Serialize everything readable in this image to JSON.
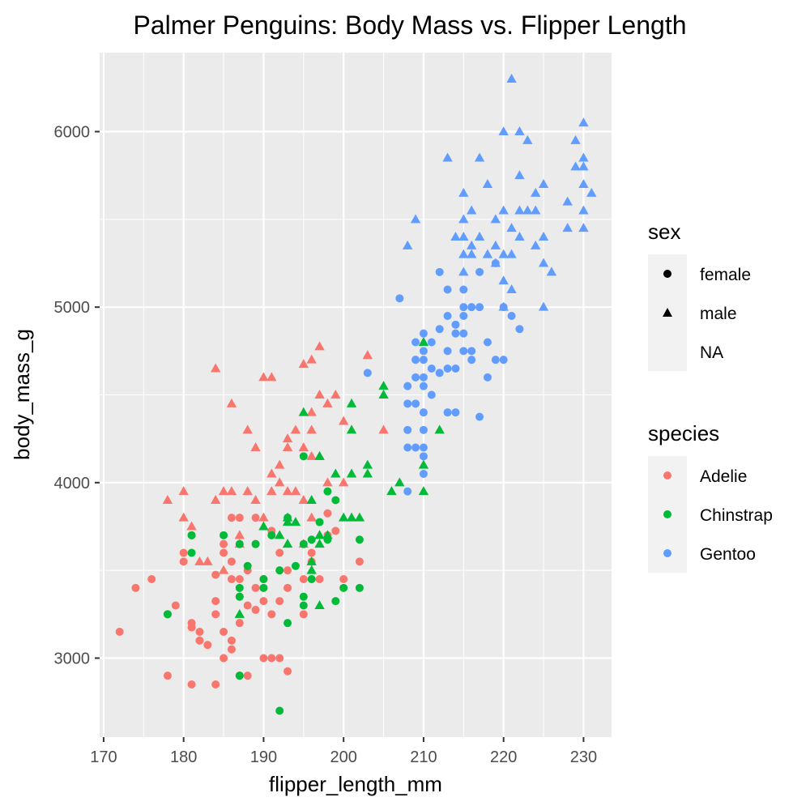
{
  "chart_data": {
    "type": "scatter",
    "title": "Palmer Penguins: Body Mass vs. Flipper Length",
    "xlabel": "flipper_length_mm",
    "ylabel": "body_mass_g",
    "xlim": [
      169.5,
      233.5
    ],
    "ylim": [
      2550,
      6450
    ],
    "x_ticks": [
      170,
      180,
      190,
      200,
      210,
      220,
      230
    ],
    "y_ticks": [
      3000,
      4000,
      5000,
      6000
    ],
    "grid": true,
    "legends": [
      {
        "title": "sex",
        "entries": [
          {
            "label": "female",
            "shape": "circle"
          },
          {
            "label": "male",
            "shape": "triangle"
          },
          {
            "label": "NA",
            "shape": "none"
          }
        ]
      },
      {
        "title": "species",
        "entries": [
          {
            "label": "Adelie",
            "color": "#F8766D"
          },
          {
            "label": "Chinstrap",
            "color": "#00BA38"
          },
          {
            "label": "Gentoo",
            "color": "#619CFF"
          }
        ]
      }
    ],
    "colors": {
      "Adelie": "#F8766D",
      "Chinstrap": "#00BA38",
      "Gentoo": "#619CFF",
      "panel": "#EBEBEB",
      "grid": "#FFFFFF",
      "legend_key": "#F2F2F2"
    },
    "series": [
      {
        "species": "Adelie",
        "sex": "female",
        "points": [
          [
            172,
            3150
          ],
          [
            174,
            3400
          ],
          [
            176,
            3450
          ],
          [
            178,
            2900
          ],
          [
            178,
            3250
          ],
          [
            179,
            3300
          ],
          [
            180,
            3550
          ],
          [
            180,
            3600
          ],
          [
            181,
            2850
          ],
          [
            181,
            3175
          ],
          [
            181,
            3200
          ],
          [
            181,
            3700
          ],
          [
            182,
            3150
          ],
          [
            182,
            3100
          ],
          [
            183,
            3075
          ],
          [
            184,
            2850
          ],
          [
            184,
            3475
          ],
          [
            184,
            3325
          ],
          [
            184,
            3250
          ],
          [
            185,
            3000
          ],
          [
            185,
            3150
          ],
          [
            185,
            3600
          ],
          [
            185,
            3650
          ],
          [
            186,
            3100
          ],
          [
            186,
            3800
          ],
          [
            186,
            3550
          ],
          [
            186,
            3450
          ],
          [
            186,
            3050
          ],
          [
            187,
            3200
          ],
          [
            187,
            3450
          ],
          [
            187,
            3350
          ],
          [
            187,
            3800
          ],
          [
            187,
            2900
          ],
          [
            188,
            3300
          ],
          [
            188,
            3500
          ],
          [
            188,
            2900
          ],
          [
            189,
            3400
          ],
          [
            189,
            3650
          ],
          [
            189,
            3800
          ],
          [
            189,
            3275
          ],
          [
            190,
            3000
          ],
          [
            190,
            3325
          ],
          [
            190,
            3450
          ],
          [
            191,
            3000
          ],
          [
            191,
            3250
          ],
          [
            191,
            3725
          ],
          [
            192,
            3325
          ],
          [
            192,
            3600
          ],
          [
            192,
            3000
          ],
          [
            193,
            2925
          ],
          [
            193,
            3500
          ],
          [
            193,
            3400
          ],
          [
            195,
            3250
          ],
          [
            195,
            3450
          ],
          [
            196,
            3550
          ],
          [
            196,
            3600
          ],
          [
            197,
            3450
          ],
          [
            198,
            3825
          ],
          [
            198,
            3700
          ],
          [
            199,
            3725
          ],
          [
            200,
            3450
          ],
          [
            202,
            3550
          ]
        ]
      },
      {
        "species": "Adelie",
        "sex": "male",
        "points": [
          [
            178,
            3900
          ],
          [
            180,
            3950
          ],
          [
            180,
            3800
          ],
          [
            181,
            3750
          ],
          [
            182,
            3550
          ],
          [
            183,
            3550
          ],
          [
            184,
            4650
          ],
          [
            184,
            3900
          ],
          [
            185,
            3950
          ],
          [
            185,
            3500
          ],
          [
            186,
            4450
          ],
          [
            186,
            3950
          ],
          [
            187,
            3700
          ],
          [
            187,
            3650
          ],
          [
            188,
            4300
          ],
          [
            188,
            3950
          ],
          [
            189,
            3900
          ],
          [
            189,
            4200
          ],
          [
            190,
            4600
          ],
          [
            190,
            3800
          ],
          [
            191,
            4600
          ],
          [
            191,
            3950
          ],
          [
            191,
            4050
          ],
          [
            192,
            4100
          ],
          [
            192,
            4000
          ],
          [
            193,
            4250
          ],
          [
            193,
            4200
          ],
          [
            193,
            3950
          ],
          [
            194,
            4300
          ],
          [
            194,
            3950
          ],
          [
            195,
            4675
          ],
          [
            195,
            4200
          ],
          [
            195,
            3650
          ],
          [
            195,
            3900
          ],
          [
            196,
            4700
          ],
          [
            196,
            4400
          ],
          [
            196,
            4300
          ],
          [
            196,
            4150
          ],
          [
            196,
            3800
          ],
          [
            197,
            4775
          ],
          [
            197,
            4500
          ],
          [
            197,
            4150
          ],
          [
            197,
            3700
          ],
          [
            198,
            4450
          ],
          [
            198,
            4000
          ],
          [
            199,
            4500
          ],
          [
            200,
            4000
          ],
          [
            200,
            4350
          ],
          [
            203,
            4725
          ],
          [
            205,
            4300
          ]
        ]
      },
      {
        "species": "Chinstrap",
        "sex": "female",
        "points": [
          [
            178,
            3250
          ],
          [
            181,
            3700
          ],
          [
            181,
            3600
          ],
          [
            185,
            3700
          ],
          [
            187,
            3650
          ],
          [
            187,
            3350
          ],
          [
            187,
            3400
          ],
          [
            187,
            2900
          ],
          [
            188,
            3525
          ],
          [
            189,
            3650
          ],
          [
            190,
            3450
          ],
          [
            190,
            3400
          ],
          [
            191,
            3700
          ],
          [
            192,
            3500
          ],
          [
            192,
            2700
          ],
          [
            193,
            3800
          ],
          [
            193,
            3200
          ],
          [
            194,
            3525
          ],
          [
            195,
            3350
          ],
          [
            195,
            3650
          ],
          [
            195,
            4150
          ],
          [
            195,
            3300
          ],
          [
            196,
            3675
          ],
          [
            196,
            3450
          ],
          [
            197,
            3775
          ],
          [
            198,
            3950
          ],
          [
            199,
            3900
          ],
          [
            199,
            3325
          ],
          [
            200,
            3400
          ],
          [
            202,
            3400
          ],
          [
            202,
            3675
          ],
          [
            198,
            3675
          ]
        ]
      },
      {
        "species": "Chinstrap",
        "sex": "male",
        "points": [
          [
            187,
            3250
          ],
          [
            190,
            3750
          ],
          [
            192,
            3700
          ],
          [
            193,
            3800
          ],
          [
            193,
            3650
          ],
          [
            193,
            3775
          ],
          [
            194,
            3775
          ],
          [
            195,
            4400
          ],
          [
            196,
            3550
          ],
          [
            196,
            3500
          ],
          [
            196,
            3900
          ],
          [
            197,
            4150
          ],
          [
            197,
            3700
          ],
          [
            197,
            3300
          ],
          [
            197,
            3650
          ],
          [
            198,
            3700
          ],
          [
            201,
            3800
          ],
          [
            201,
            4050
          ],
          [
            201,
            4450
          ],
          [
            201,
            4300
          ],
          [
            202,
            3800
          ],
          [
            203,
            4100
          ],
          [
            203,
            4050
          ],
          [
            205,
            4550
          ],
          [
            205,
            4500
          ],
          [
            206,
            3950
          ],
          [
            207,
            4000
          ],
          [
            210,
            4800
          ],
          [
            210,
            4100
          ],
          [
            210,
            3950
          ],
          [
            212,
            4300
          ],
          [
            199,
            4050
          ],
          [
            200,
            3800
          ]
        ]
      },
      {
        "species": "Gentoo",
        "sex": "female",
        "points": [
          [
            203,
            4625
          ],
          [
            207,
            5050
          ],
          [
            208,
            3950
          ],
          [
            208,
            4200
          ],
          [
            208,
            4300
          ],
          [
            208,
            4450
          ],
          [
            208,
            4550
          ],
          [
            209,
            4200
          ],
          [
            209,
            4450
          ],
          [
            209,
            4600
          ],
          [
            209,
            4700
          ],
          [
            209,
            4800
          ],
          [
            210,
            4050
          ],
          [
            210,
            4150
          ],
          [
            210,
            4200
          ],
          [
            210,
            4300
          ],
          [
            210,
            4400
          ],
          [
            210,
            4550
          ],
          [
            210,
            4600
          ],
          [
            210,
            4700
          ],
          [
            210,
            4750
          ],
          [
            210,
            4850
          ],
          [
            211,
            4500
          ],
          [
            211,
            4650
          ],
          [
            211,
            4800
          ],
          [
            212,
            4625
          ],
          [
            212,
            4875
          ],
          [
            212,
            5200
          ],
          [
            213,
            4400
          ],
          [
            213,
            4650
          ],
          [
            213,
            4750
          ],
          [
            213,
            4950
          ],
          [
            213,
            5100
          ],
          [
            214,
            4400
          ],
          [
            214,
            4650
          ],
          [
            214,
            4850
          ],
          [
            214,
            4900
          ],
          [
            215,
            4750
          ],
          [
            215,
            4850
          ],
          [
            215,
            4950
          ],
          [
            215,
            5000
          ],
          [
            215,
            5100
          ],
          [
            216,
            4700
          ],
          [
            216,
            4750
          ],
          [
            216,
            5000
          ],
          [
            217,
            4375
          ],
          [
            217,
            5000
          ],
          [
            217,
            5200
          ],
          [
            218,
            4600
          ],
          [
            218,
            4800
          ],
          [
            219,
            4700
          ],
          [
            219,
            5250
          ],
          [
            220,
            4700
          ],
          [
            220,
            5000
          ],
          [
            221,
            4950
          ],
          [
            222,
            4875
          ]
        ]
      },
      {
        "species": "Gentoo",
        "sex": "male",
        "points": [
          [
            208,
            5350
          ],
          [
            209,
            5500
          ],
          [
            213,
            5850
          ],
          [
            214,
            5400
          ],
          [
            215,
            5650
          ],
          [
            215,
            5500
          ],
          [
            215,
            5400
          ],
          [
            215,
            5300
          ],
          [
            215,
            5200
          ],
          [
            216,
            5300
          ],
          [
            216,
            5550
          ],
          [
            216,
            5350
          ],
          [
            217,
            5850
          ],
          [
            217,
            5400
          ],
          [
            218,
            5700
          ],
          [
            218,
            5300
          ],
          [
            219,
            5500
          ],
          [
            219,
            5250
          ],
          [
            219,
            5350
          ],
          [
            220,
            6000
          ],
          [
            220,
            5550
          ],
          [
            220,
            5300
          ],
          [
            220,
            5150
          ],
          [
            220,
            5000
          ],
          [
            221,
            6300
          ],
          [
            221,
            5450
          ],
          [
            221,
            5300
          ],
          [
            221,
            5100
          ],
          [
            222,
            6000
          ],
          [
            222,
            5750
          ],
          [
            222,
            5550
          ],
          [
            222,
            5400
          ],
          [
            223,
            5950
          ],
          [
            223,
            5550
          ],
          [
            224,
            5550
          ],
          [
            224,
            5650
          ],
          [
            224,
            5350
          ],
          [
            225,
            5700
          ],
          [
            225,
            5400
          ],
          [
            225,
            5250
          ],
          [
            225,
            5000
          ],
          [
            226,
            5200
          ],
          [
            228,
            5600
          ],
          [
            228,
            5450
          ],
          [
            229,
            5950
          ],
          [
            229,
            5800
          ],
          [
            230,
            6050
          ],
          [
            230,
            5850
          ],
          [
            230,
            5700
          ],
          [
            230,
            5550
          ],
          [
            230,
            5800
          ],
          [
            230,
            5450
          ],
          [
            231,
            5650
          ]
        ]
      }
    ]
  }
}
